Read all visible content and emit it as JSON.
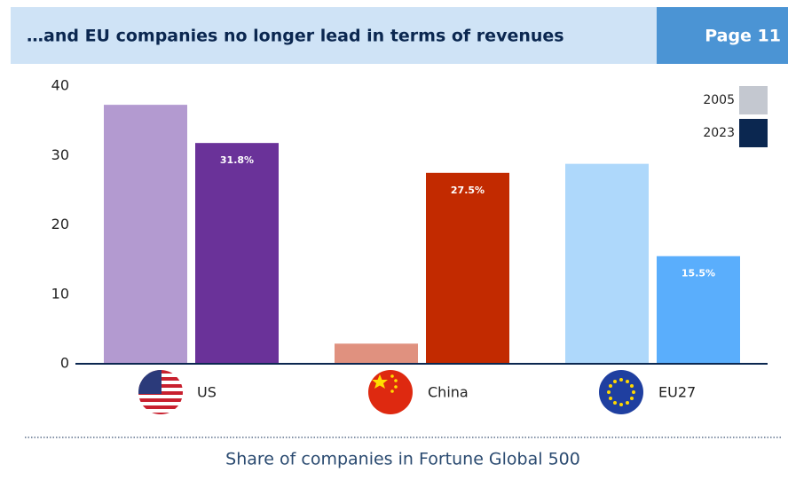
{
  "chart_data": {
    "type": "bar",
    "title": "…and EU companies no longer lead in terms of revenues",
    "page_label": "Page 11",
    "caption": "Share of companies in Fortune Global 500",
    "categories": [
      "US",
      "China",
      "EU27"
    ],
    "series": [
      {
        "name": "2005",
        "color": "#c4c8d0",
        "colors": [
          "#b39ad0",
          "#e0917f",
          "#aed8fb"
        ],
        "values": [
          37.3,
          2.9,
          28.8
        ]
      },
      {
        "name": "2023",
        "color": "#0b2750",
        "colors": [
          "#6a3299",
          "#c22a00",
          "#5aaefc"
        ],
        "values": [
          31.8,
          27.5,
          15.5
        ],
        "value_labels": [
          "31.8%",
          "27.5%",
          "15.5%"
        ]
      }
    ],
    "ylim": [
      0,
      40
    ],
    "yticks": [
      0,
      10,
      20,
      30,
      40
    ],
    "grid": false,
    "legend": "top-right"
  }
}
